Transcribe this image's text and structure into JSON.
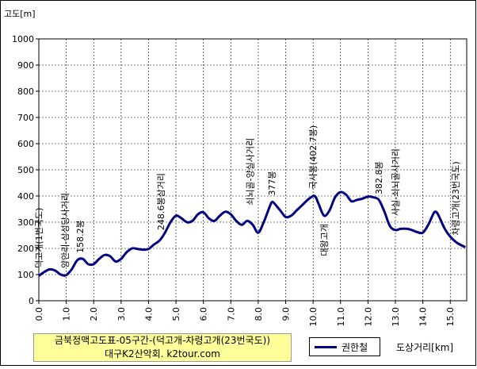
{
  "chart_data": {
    "type": "line",
    "ylabel": "고도[m]",
    "xlabel": "도상거리[km]",
    "xlim": [
      0,
      15.6
    ],
    "ylim": [
      0,
      1000
    ],
    "yticks": [
      0,
      100,
      200,
      300,
      400,
      500,
      600,
      700,
      800,
      900,
      1000
    ],
    "xticks": [
      "0.0",
      "1.0",
      "2.0",
      "3.0",
      "4.0",
      "5.0",
      "6.0",
      "7.0",
      "8.0",
      "9.0",
      "10.0",
      "11.0",
      "12.0",
      "13.0",
      "14.0",
      "15.0"
    ],
    "grid": true,
    "legend_position": "bottom",
    "title_lines": [
      "금북정맥고도표-05구간-(덕고개-차령고개(23번국도))",
      "대구K2산악회. k2tour.com"
    ],
    "series": [
      {
        "name": "권한철",
        "color": "#000080",
        "x": [
          0.0,
          0.2,
          0.4,
          0.6,
          0.8,
          1.0,
          1.2,
          1.4,
          1.6,
          1.8,
          2.0,
          2.2,
          2.4,
          2.6,
          2.8,
          3.0,
          3.2,
          3.4,
          3.6,
          3.8,
          4.0,
          4.2,
          4.4,
          4.6,
          4.8,
          5.0,
          5.2,
          5.4,
          5.6,
          5.8,
          6.0,
          6.2,
          6.4,
          6.6,
          6.8,
          7.0,
          7.2,
          7.4,
          7.6,
          7.8,
          8.0,
          8.2,
          8.4,
          8.5,
          8.6,
          8.8,
          9.0,
          9.2,
          9.4,
          9.6,
          9.8,
          10.0,
          10.1,
          10.2,
          10.4,
          10.6,
          10.8,
          11.0,
          11.2,
          11.4,
          11.6,
          11.8,
          12.0,
          12.2,
          12.4,
          12.6,
          12.8,
          13.0,
          13.2,
          13.4,
          13.6,
          13.8,
          14.0,
          14.2,
          14.4,
          14.5,
          14.6,
          14.8,
          15.0,
          15.2,
          15.4,
          15.55
        ],
        "values": [
          95,
          110,
          120,
          115,
          100,
          98,
          120,
          155,
          160,
          140,
          140,
          160,
          175,
          170,
          150,
          160,
          185,
          200,
          198,
          195,
          198,
          215,
          230,
          260,
          300,
          325,
          315,
          300,
          305,
          330,
          338,
          315,
          305,
          325,
          340,
          330,
          305,
          290,
          305,
          290,
          260,
          300,
          355,
          377,
          370,
          345,
          320,
          325,
          345,
          365,
          385,
          400,
          395,
          370,
          325,
          345,
          395,
          415,
          405,
          380,
          385,
          390,
          398,
          395,
          385,
          340,
          285,
          270,
          275,
          275,
          270,
          262,
          260,
          290,
          335,
          338,
          320,
          275,
          245,
          225,
          212,
          205
        ]
      }
    ],
    "annotations": [
      {
        "x": 0.0,
        "y": 100,
        "text": "덕고개(1번국도)"
      },
      {
        "x": 0.95,
        "y": 100,
        "text": "양안리-삼성당사거리"
      },
      {
        "x": 1.5,
        "y": 158,
        "text": "158.2봉"
      },
      {
        "x": 4.45,
        "y": 245,
        "text": "248.6봉삼거리"
      },
      {
        "x": 7.7,
        "y": 340,
        "text": "쇠뇌골-양실사거리"
      },
      {
        "x": 8.5,
        "y": 377,
        "text": "377봉"
      },
      {
        "x": 10.0,
        "y": 402,
        "text": "국사봉(402.7봉)"
      },
      {
        "x": 10.4,
        "y": 330,
        "text": "대왕고개",
        "below": true
      },
      {
        "x": 12.4,
        "y": 382,
        "text": "382.8봉"
      },
      {
        "x": 13.0,
        "y": 300,
        "text": "사실-쇠뇌골사거리"
      },
      {
        "x": 15.2,
        "y": 225,
        "text": "차령고개(23번국도)"
      }
    ]
  }
}
